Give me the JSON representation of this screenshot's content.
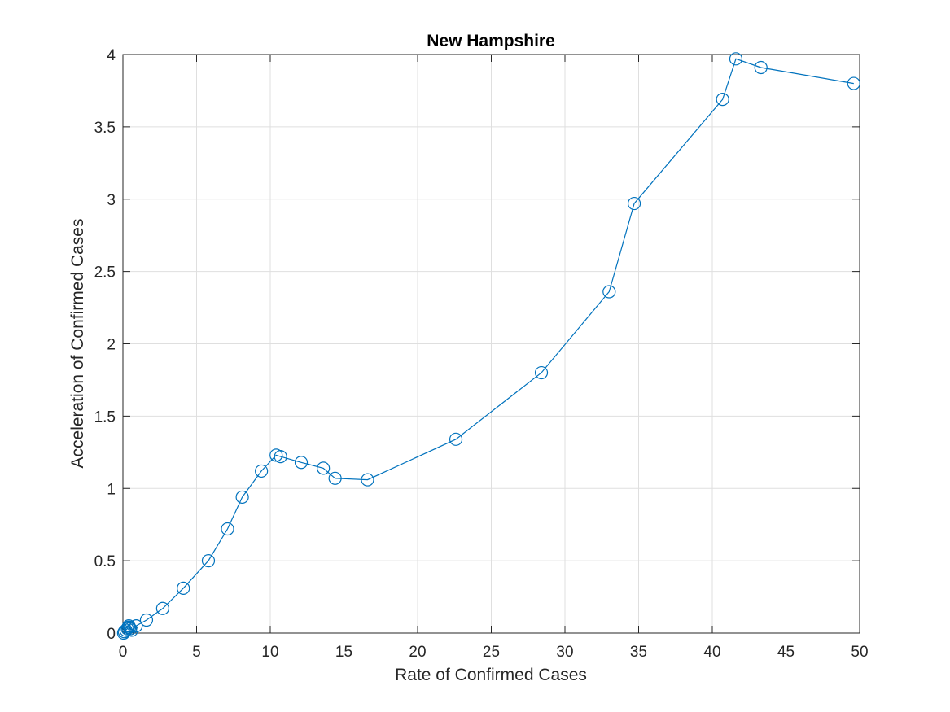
{
  "chart_data": {
    "type": "line",
    "title": "New Hampshire",
    "xlabel": "Rate of Confirmed Cases",
    "ylabel": "Acceleration of Confirmed Cases",
    "xlim": [
      0,
      50
    ],
    "ylim": [
      0,
      4
    ],
    "xticks": [
      0,
      5,
      10,
      15,
      20,
      25,
      30,
      35,
      40,
      45,
      50
    ],
    "yticks": [
      0,
      0.5,
      1,
      1.5,
      2,
      2.5,
      3,
      3.5,
      4
    ],
    "xtick_labels": [
      "0",
      "5",
      "10",
      "15",
      "20",
      "25",
      "30",
      "35",
      "40",
      "45",
      "50"
    ],
    "ytick_labels": [
      "0",
      "0.5",
      "1",
      "1.5",
      "2",
      "2.5",
      "3",
      "3.5",
      "4"
    ],
    "grid": true,
    "marker": "circle",
    "line_color": "#0072BD",
    "series": [
      {
        "x": [
          0.05,
          0.1,
          0.2,
          0.3,
          0.35,
          0.4,
          0.45,
          0.5,
          0.6,
          0.9,
          1.6,
          2.7,
          4.1,
          5.8,
          7.1,
          8.1,
          9.4,
          10.4,
          10.7,
          12.1,
          13.6,
          14.4,
          16.6,
          22.6,
          28.4,
          33.0,
          34.7,
          40.7,
          41.6,
          43.3,
          49.6
        ],
        "y": [
          0.0,
          0.01,
          0.02,
          0.03,
          0.04,
          0.05,
          0.04,
          0.03,
          0.02,
          0.05,
          0.09,
          0.17,
          0.31,
          0.5,
          0.72,
          0.94,
          1.12,
          1.23,
          1.22,
          1.18,
          1.14,
          1.07,
          1.06,
          1.34,
          1.8,
          2.36,
          2.97,
          3.69,
          3.97,
          3.91,
          3.8
        ]
      }
    ]
  }
}
